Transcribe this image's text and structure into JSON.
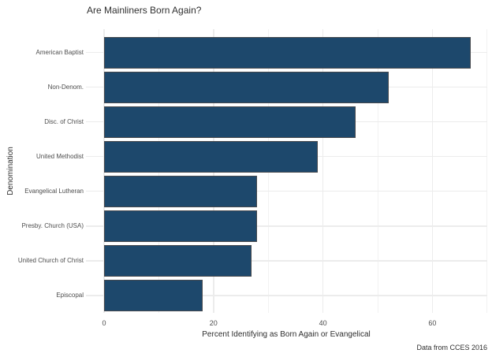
{
  "figure": {
    "title": "Are Mainliners Born Again?",
    "caption": "Data from CCES 2016"
  },
  "chart_data": {
    "type": "bar",
    "orientation": "horizontal",
    "title": "Are Mainliners Born Again?",
    "xlabel": "Percent Identifying as Born Again or Evangelical",
    "ylabel": "Denomination",
    "caption": "Data from CCES 2016",
    "categories": [
      "American Baptist",
      "Non-Denom.",
      "Disc. of Christ",
      "United Methodist",
      "Evangelical Lutheran",
      "Presby. Church (USA)",
      "United Church of Christ",
      "Episcopal"
    ],
    "values": [
      67,
      52,
      46,
      39,
      28,
      28,
      27,
      18
    ],
    "xlim": [
      0,
      70
    ],
    "xticks": [
      0,
      20,
      40,
      60
    ],
    "xticks_minor": [
      10,
      30,
      50,
      70
    ],
    "grid": true,
    "legend": "none",
    "sort_order": "descending",
    "colors": {
      "bar_fill": "#1d486c",
      "bar_border": "#45484d",
      "grid_major": "#ececec",
      "grid_minor": "#f2f2f2",
      "background": "#ffffff",
      "tick_text": "#4d4d4d",
      "title_text": "#303030"
    }
  }
}
